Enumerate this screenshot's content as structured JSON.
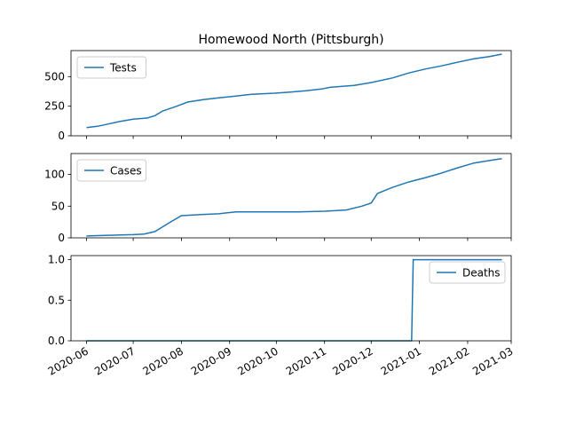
{
  "chart_data": {
    "type": "line",
    "title": "Homewood North (Pittsburgh)",
    "x_axis": {
      "type": "date",
      "range": [
        "2020-05-22",
        "2021-03-01"
      ],
      "ticks": [
        "2020-06-01",
        "2020-07-01",
        "2020-08-01",
        "2020-09-01",
        "2020-10-01",
        "2020-11-01",
        "2020-12-01",
        "2021-01-01",
        "2021-02-01",
        "2021-03-01"
      ],
      "tick_labels": [
        "2020-06",
        "2020-07",
        "2020-08",
        "2020-09",
        "2020-10",
        "2020-11",
        "2020-12",
        "2021-01",
        "2021-02",
        "2021-03"
      ]
    },
    "color": "#1f77b4",
    "grid": false,
    "panels": [
      {
        "series_name": "Tests",
        "legend": "upper-left",
        "ylim": [
          0,
          720
        ],
        "yticks": [
          0,
          250,
          500
        ],
        "ytick_labels": [
          "0",
          "250",
          "500"
        ],
        "x": [
          "2020-06-01",
          "2020-06-08",
          "2020-06-15",
          "2020-06-22",
          "2020-07-01",
          "2020-07-10",
          "2020-07-15",
          "2020-07-20",
          "2020-07-28",
          "2020-08-05",
          "2020-08-15",
          "2020-08-25",
          "2020-09-05",
          "2020-09-15",
          "2020-09-30",
          "2020-10-10",
          "2020-10-20",
          "2020-10-30",
          "2020-11-05",
          "2020-11-20",
          "2020-12-01",
          "2020-12-15",
          "2020-12-25",
          "2021-01-05",
          "2021-01-15",
          "2021-01-25",
          "2021-02-05",
          "2021-02-15",
          "2021-02-23"
        ],
        "y": [
          70,
          80,
          100,
          120,
          140,
          150,
          170,
          210,
          245,
          285,
          305,
          320,
          335,
          350,
          360,
          370,
          380,
          395,
          410,
          425,
          450,
          490,
          530,
          565,
          590,
          620,
          650,
          670,
          690
        ]
      },
      {
        "series_name": "Cases",
        "legend": "upper-left",
        "ylim": [
          0,
          133
        ],
        "yticks": [
          0,
          50,
          100
        ],
        "ytick_labels": [
          "0",
          "50",
          "100"
        ],
        "x": [
          "2020-06-01",
          "2020-06-15",
          "2020-07-01",
          "2020-07-08",
          "2020-07-15",
          "2020-07-25",
          "2020-08-01",
          "2020-08-15",
          "2020-08-25",
          "2020-09-05",
          "2020-09-15",
          "2020-10-01",
          "2020-10-15",
          "2020-11-01",
          "2020-11-15",
          "2020-11-25",
          "2020-12-01",
          "2020-12-05",
          "2020-12-10",
          "2020-12-15",
          "2020-12-25",
          "2021-01-05",
          "2021-01-15",
          "2021-01-25",
          "2021-02-05",
          "2021-02-15",
          "2021-02-23"
        ],
        "y": [
          3,
          4,
          5,
          6,
          10,
          25,
          35,
          37,
          38,
          41,
          41,
          41,
          41,
          42,
          44,
          50,
          55,
          70,
          75,
          80,
          88,
          95,
          102,
          110,
          118,
          122,
          125
        ]
      },
      {
        "series_name": "Deaths",
        "legend": "upper-right",
        "ylim": [
          0,
          1.05
        ],
        "yticks": [
          0,
          0.5,
          1.0
        ],
        "ytick_labels": [
          "0.0",
          "0.5",
          "1.0"
        ],
        "x": [
          "2020-06-01",
          "2020-12-27",
          "2020-12-28",
          "2021-02-23"
        ],
        "y": [
          0,
          0,
          1,
          1
        ]
      }
    ]
  }
}
